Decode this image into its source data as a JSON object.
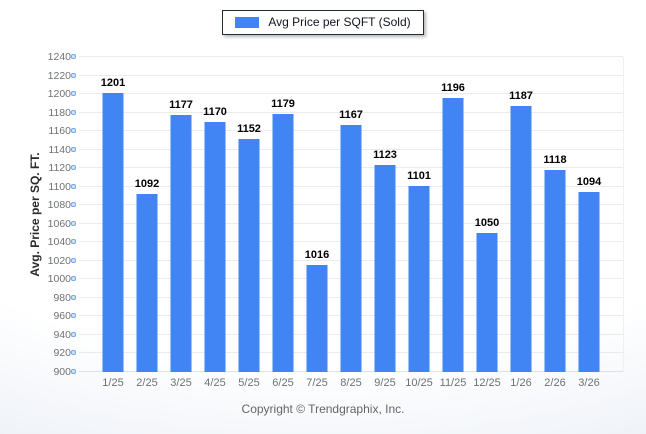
{
  "legend": {
    "label": "Avg Price per SQFT (Sold)",
    "swatch_color": "#4184F3"
  },
  "footer": {
    "copyright": "Copyright © Trendgraphix, Inc."
  },
  "chart_data": {
    "type": "bar",
    "title": "",
    "categories": [
      "1/25",
      "2/25",
      "3/25",
      "4/25",
      "5/25",
      "6/25",
      "7/25",
      "8/25",
      "9/25",
      "10/25",
      "11/25",
      "12/25",
      "1/26",
      "2/26",
      "3/26"
    ],
    "series": [
      {
        "name": "Avg Price per SQFT (Sold)",
        "color": "#4184F3",
        "values": [
          1201,
          1092,
          1177,
          1170,
          1152,
          1179,
          1016,
          1167,
          1123,
          1101,
          1196,
          1050,
          1187,
          1118,
          1094
        ]
      }
    ],
    "xlabel": "",
    "ylabel": "Avg. Price per SQ. FT.",
    "ylim": [
      900,
      1240
    ],
    "ytick_step": 20,
    "grid": "horizontal",
    "legend_position": "top-center",
    "value_labels": true,
    "colors": {
      "bar": "#4184F3",
      "gridline": "#ebebeb",
      "baseline": "#dde2e8",
      "axis_tick_label": "#6e7177",
      "value_label": "#000000",
      "tick_mark_fill": "#cfe3fb",
      "tick_mark_border": "#76a9ea",
      "legend_border": "#222b38"
    }
  }
}
